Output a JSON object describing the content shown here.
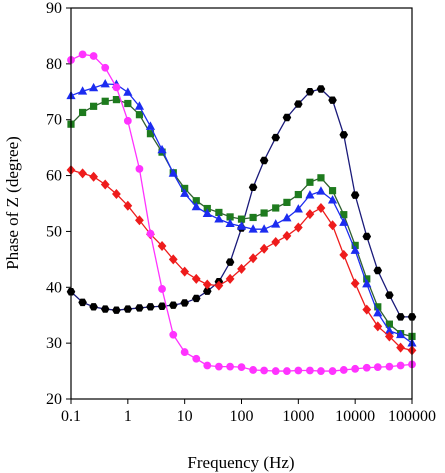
{
  "chart_data": {
    "type": "line",
    "title": "",
    "xlabel": "Frequency (Hz)",
    "ylabel": "Phase of Z (degree)",
    "xscale": "log",
    "xlim": [
      0.1,
      100000
    ],
    "ylim": [
      20,
      90
    ],
    "x_ticks": [
      0.1,
      1,
      10,
      100,
      1000,
      10000,
      100000
    ],
    "x_tick_labels": [
      "0.1",
      "1",
      "10",
      "100",
      "1000",
      "10000",
      "100000"
    ],
    "y_ticks": [
      20,
      30,
      40,
      50,
      60,
      70,
      80,
      90
    ],
    "y_tick_labels": [
      "20",
      "30",
      "40",
      "50",
      "60",
      "70",
      "80",
      "90"
    ],
    "grid": false,
    "legend": "none",
    "x": [
      0.1,
      0.16,
      0.25,
      0.4,
      0.63,
      1,
      1.6,
      2.5,
      4,
      6.3,
      10,
      16,
      25,
      40,
      63,
      100,
      160,
      250,
      400,
      630,
      1000,
      1600,
      2500,
      4000,
      6300,
      10000,
      16000,
      25000,
      40000,
      63000,
      100000
    ],
    "series": [
      {
        "marker": "hexagon",
        "color": "#000000",
        "line_color": "#1a1a7a",
        "values": [
          39.2,
          37.3,
          36.5,
          36.1,
          35.9,
          36.1,
          36.3,
          36.5,
          36.6,
          36.8,
          37.2,
          38,
          39.3,
          41,
          44.5,
          50.6,
          57.9,
          62.7,
          66.8,
          70.4,
          72.8,
          75,
          75.5,
          73.5,
          67.3,
          56.5,
          49.1,
          43,
          38.6,
          34.7,
          34.7
        ]
      },
      {
        "marker": "square",
        "color": "#1e7b1e",
        "line_color": "#2f5f2f",
        "values": [
          69.2,
          71.3,
          72.4,
          73.3,
          73.6,
          72.9,
          70.9,
          67.5,
          64.2,
          60.5,
          57.7,
          55.5,
          54.1,
          53.4,
          52.6,
          52.2,
          52.5,
          53.3,
          54.2,
          55.2,
          56.6,
          58.8,
          59.6,
          57.3,
          53,
          47.5,
          41.5,
          36.5,
          33.4,
          31.7,
          31.2
        ]
      },
      {
        "marker": "triangle",
        "color": "#1c2cf0",
        "line_color": "#1c2cf0",
        "values": [
          74.3,
          75.1,
          75.7,
          76.4,
          76.3,
          74.9,
          72.4,
          68.8,
          64.6,
          60.4,
          56.8,
          54.4,
          53.2,
          52.2,
          51.4,
          50.9,
          50.4,
          50.4,
          51.3,
          52.4,
          54,
          56.5,
          57.2,
          55.6,
          51.6,
          46.6,
          40.6,
          35.4,
          32.2,
          31.5,
          30
        ]
      },
      {
        "marker": "diamond",
        "color": "#ee1c1c",
        "line_color": "#ee1c1c",
        "values": [
          61,
          60.4,
          59.8,
          58.4,
          56.7,
          54.6,
          52,
          49.5,
          47.4,
          45,
          42.8,
          41.5,
          40.5,
          40.3,
          41.5,
          43.3,
          45.2,
          46.9,
          48.1,
          49.2,
          50.7,
          53.1,
          54.2,
          51.1,
          45.8,
          40.7,
          36,
          33,
          31.2,
          29.2,
          28.7
        ]
      },
      {
        "marker": "circle",
        "color": "#ff33ff",
        "line_color": "#ff33ff",
        "values": [
          80.7,
          81.7,
          81.4,
          79.3,
          75.8,
          69.8,
          61.2,
          49.6,
          39.7,
          31.5,
          28.4,
          27.2,
          26,
          25.8,
          25.8,
          25.7,
          25.2,
          25.1,
          25,
          25,
          25.1,
          25.1,
          25,
          25,
          25.2,
          25.4,
          25.6,
          25.7,
          25.8,
          26,
          26.2
        ]
      }
    ]
  }
}
